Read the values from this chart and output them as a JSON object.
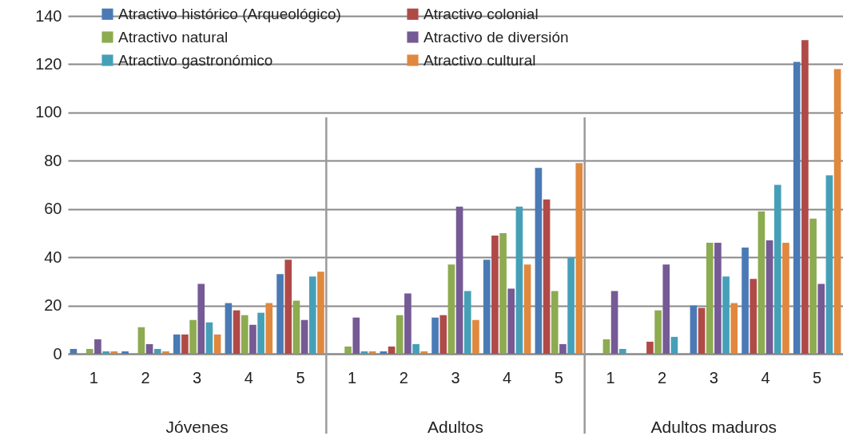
{
  "chart_data": {
    "type": "bar",
    "categories": [
      "1",
      "2",
      "3",
      "4",
      "5",
      "1",
      "2",
      "3",
      "4",
      "5",
      "1",
      "2",
      "3",
      "4",
      "5"
    ],
    "annotations": [
      "Jóvenes",
      "Adultos",
      "Adultos maduros"
    ],
    "ylim": [
      0,
      140
    ],
    "yticks": [
      0,
      20,
      40,
      60,
      80,
      100,
      120,
      140
    ],
    "grid": "y",
    "legend": "top",
    "series": [
      {
        "name": "Atractivo histórico (Arqueológico)",
        "color": "#4a7ab5",
        "values": [
          2,
          1,
          8,
          21,
          33,
          0,
          1,
          15,
          39,
          77,
          0,
          0,
          20,
          44,
          121
        ]
      },
      {
        "name": "Atractivo colonial",
        "color": "#b04a47",
        "values": [
          0,
          0,
          8,
          18,
          39,
          0,
          3,
          16,
          49,
          64,
          0,
          5,
          19,
          31,
          130
        ]
      },
      {
        "name": "Atractivo natural",
        "color": "#8dab50",
        "values": [
          2,
          11,
          14,
          16,
          22,
          3,
          16,
          37,
          50,
          26,
          6,
          18,
          46,
          59,
          56
        ]
      },
      {
        "name": "Atractivo de diversión",
        "color": "#755a95",
        "values": [
          6,
          4,
          29,
          12,
          14,
          15,
          25,
          61,
          27,
          4,
          26,
          37,
          46,
          47,
          29
        ]
      },
      {
        "name": "Atractivo gastronómico",
        "color": "#45a0b7",
        "values": [
          1,
          2,
          13,
          17,
          32,
          1,
          4,
          26,
          61,
          40,
          2,
          7,
          32,
          70,
          74
        ]
      },
      {
        "name": "Atractivo cultural",
        "color": "#e0883e",
        "values": [
          1,
          1,
          8,
          21,
          34,
          1,
          1,
          14,
          37,
          79,
          0,
          0,
          21,
          46,
          118
        ]
      }
    ]
  }
}
